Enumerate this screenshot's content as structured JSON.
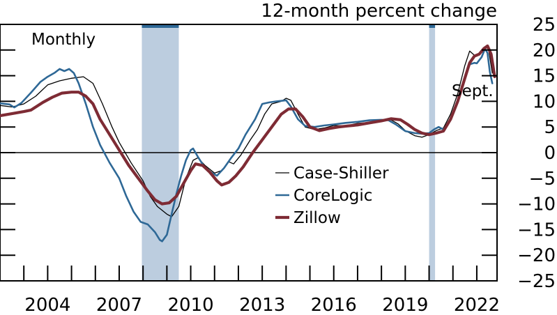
{
  "chart_data": {
    "type": "line",
    "title": "12-month percent change",
    "subtitle": "Monthly",
    "xlabel": "",
    "ylabel": "12-month percent change",
    "xlim": [
      2002.0,
      2022.85
    ],
    "ylim": [
      -25,
      25
    ],
    "x_ticks": [
      2002,
      2003,
      2004,
      2005,
      2006,
      2007,
      2008,
      2009,
      2010,
      2011,
      2012,
      2013,
      2014,
      2015,
      2016,
      2017,
      2018,
      2019,
      2020,
      2021,
      2022
    ],
    "x_tick_labels": [
      "2004",
      "2007",
      "2010",
      "2013",
      "2016",
      "2019",
      "2022"
    ],
    "x_tick_label_years": [
      2004,
      2007,
      2010,
      2013,
      2016,
      2019,
      2022
    ],
    "y_ticks": [
      25,
      20,
      15,
      10,
      5,
      0,
      -5,
      -10,
      -15,
      -20,
      -25
    ],
    "y_tick_labels": [
      "25",
      "20",
      "15",
      "10",
      "5",
      "0",
      "−5",
      "−10",
      "−15",
      "−20",
      "−25"
    ],
    "recessions": [
      {
        "start": 2007.95,
        "end": 2009.5
      },
      {
        "start": 2020.0,
        "end": 2020.25
      }
    ],
    "zero_line": true,
    "legend_position": "center-right",
    "annotation": "Sept.",
    "series": [
      {
        "name": "Case-Shiller",
        "color": "#000000",
        "style": "thin",
        "points": [
          [
            2002.0,
            9.2
          ],
          [
            2002.5,
            8.9
          ],
          [
            2003.0,
            9.5
          ],
          [
            2003.5,
            11.0
          ],
          [
            2004.0,
            13.2
          ],
          [
            2004.5,
            14.0
          ],
          [
            2005.0,
            14.5
          ],
          [
            2005.5,
            14.8
          ],
          [
            2005.9,
            13.5
          ],
          [
            2006.3,
            9.5
          ],
          [
            2006.7,
            5.0
          ],
          [
            2007.0,
            2.0
          ],
          [
            2007.5,
            -2.0
          ],
          [
            2008.0,
            -5.5
          ],
          [
            2008.3,
            -8.5
          ],
          [
            2008.6,
            -10.5
          ],
          [
            2009.0,
            -12.0
          ],
          [
            2009.2,
            -12.5
          ],
          [
            2009.5,
            -10.5
          ],
          [
            2009.8,
            -5.0
          ],
          [
            2010.1,
            -1.5
          ],
          [
            2010.3,
            -1.0
          ],
          [
            2010.6,
            -2.5
          ],
          [
            2011.0,
            -4.0
          ],
          [
            2011.3,
            -3.5
          ],
          [
            2011.6,
            -1.8
          ],
          [
            2011.8,
            -2.2
          ],
          [
            2012.1,
            -0.5
          ],
          [
            2012.5,
            2.5
          ],
          [
            2012.8,
            4.5
          ],
          [
            2013.1,
            7.5
          ],
          [
            2013.4,
            9.5
          ],
          [
            2013.8,
            10.0
          ],
          [
            2014.0,
            10.6
          ],
          [
            2014.2,
            10.2
          ],
          [
            2014.5,
            7.5
          ],
          [
            2014.8,
            5.0
          ],
          [
            2015.2,
            4.5
          ],
          [
            2015.6,
            4.8
          ],
          [
            2016.0,
            5.3
          ],
          [
            2016.5,
            5.2
          ],
          [
            2017.0,
            5.7
          ],
          [
            2017.5,
            5.9
          ],
          [
            2018.0,
            6.3
          ],
          [
            2018.4,
            6.4
          ],
          [
            2018.7,
            5.6
          ],
          [
            2019.0,
            4.3
          ],
          [
            2019.4,
            3.3
          ],
          [
            2019.7,
            3.0
          ],
          [
            2020.0,
            3.5
          ],
          [
            2020.3,
            4.3
          ],
          [
            2020.6,
            4.8
          ],
          [
            2020.9,
            7.5
          ],
          [
            2021.2,
            11.5
          ],
          [
            2021.5,
            17.0
          ],
          [
            2021.7,
            19.8
          ],
          [
            2021.9,
            19.0
          ],
          [
            2022.0,
            18.8
          ],
          [
            2022.2,
            19.5
          ],
          [
            2022.4,
            20.8
          ],
          [
            2022.5,
            20.0
          ],
          [
            2022.65,
            15.5
          ]
        ]
      },
      {
        "name": "CoreLogic",
        "color": "#2e6896",
        "style": "medium",
        "points": [
          [
            2002.0,
            9.6
          ],
          [
            2002.4,
            9.4
          ],
          [
            2002.6,
            8.8
          ],
          [
            2002.9,
            9.7
          ],
          [
            2003.3,
            11.7
          ],
          [
            2003.7,
            13.8
          ],
          [
            2004.0,
            14.8
          ],
          [
            2004.3,
            15.6
          ],
          [
            2004.5,
            16.3
          ],
          [
            2004.7,
            15.9
          ],
          [
            2004.9,
            16.3
          ],
          [
            2005.1,
            15.5
          ],
          [
            2005.3,
            13.5
          ],
          [
            2005.6,
            9.5
          ],
          [
            2005.9,
            5.0
          ],
          [
            2006.2,
            1.5
          ],
          [
            2006.6,
            -2.0
          ],
          [
            2007.0,
            -5.0
          ],
          [
            2007.3,
            -8.5
          ],
          [
            2007.6,
            -11.5
          ],
          [
            2007.9,
            -13.5
          ],
          [
            2008.2,
            -14.0
          ],
          [
            2008.5,
            -15.5
          ],
          [
            2008.7,
            -17.0
          ],
          [
            2008.8,
            -17.3
          ],
          [
            2009.0,
            -16.0
          ],
          [
            2009.2,
            -12.0
          ],
          [
            2009.4,
            -8.0
          ],
          [
            2009.6,
            -4.5
          ],
          [
            2009.8,
            -1.5
          ],
          [
            2010.0,
            0.5
          ],
          [
            2010.1,
            0.8
          ],
          [
            2010.3,
            -0.8
          ],
          [
            2010.6,
            -3.0
          ],
          [
            2010.9,
            -4.0
          ],
          [
            2011.1,
            -4.5
          ],
          [
            2011.4,
            -3.0
          ],
          [
            2011.7,
            -1.0
          ],
          [
            2012.0,
            0.8
          ],
          [
            2012.3,
            3.5
          ],
          [
            2012.7,
            6.5
          ],
          [
            2013.0,
            9.5
          ],
          [
            2013.3,
            9.8
          ],
          [
            2013.6,
            10.0
          ],
          [
            2014.0,
            10.2
          ],
          [
            2014.2,
            9.0
          ],
          [
            2014.5,
            6.5
          ],
          [
            2014.8,
            5.2
          ],
          [
            2015.2,
            5.0
          ],
          [
            2015.6,
            5.3
          ],
          [
            2016.0,
            5.5
          ],
          [
            2016.5,
            5.8
          ],
          [
            2017.0,
            6.0
          ],
          [
            2017.5,
            6.3
          ],
          [
            2018.0,
            6.4
          ],
          [
            2018.3,
            6.3
          ],
          [
            2018.6,
            5.5
          ],
          [
            2019.0,
            4.2
          ],
          [
            2019.4,
            3.8
          ],
          [
            2019.7,
            3.7
          ],
          [
            2020.0,
            3.8
          ],
          [
            2020.2,
            4.5
          ],
          [
            2020.4,
            5.0
          ],
          [
            2020.6,
            4.5
          ],
          [
            2020.9,
            6.5
          ],
          [
            2021.2,
            10.0
          ],
          [
            2021.5,
            14.5
          ],
          [
            2021.7,
            17.2
          ],
          [
            2021.9,
            17.5
          ],
          [
            2022.0,
            17.4
          ],
          [
            2022.2,
            18.6
          ],
          [
            2022.35,
            20.3
          ],
          [
            2022.45,
            19.4
          ],
          [
            2022.55,
            15.7
          ],
          [
            2022.65,
            13.5
          ]
        ]
      },
      {
        "name": "Zillow",
        "color": "#7e2b34",
        "style": "thick",
        "points": [
          [
            2002.0,
            7.2
          ],
          [
            2002.5,
            7.6
          ],
          [
            2003.0,
            8.0
          ],
          [
            2003.3,
            8.3
          ],
          [
            2003.8,
            9.8
          ],
          [
            2004.2,
            10.8
          ],
          [
            2004.6,
            11.6
          ],
          [
            2005.0,
            11.8
          ],
          [
            2005.3,
            11.8
          ],
          [
            2005.6,
            11.0
          ],
          [
            2005.9,
            9.5
          ],
          [
            2006.2,
            6.5
          ],
          [
            2006.6,
            3.5
          ],
          [
            2007.0,
            0.5
          ],
          [
            2007.4,
            -2.5
          ],
          [
            2007.8,
            -5.0
          ],
          [
            2008.2,
            -7.5
          ],
          [
            2008.5,
            -9.2
          ],
          [
            2008.8,
            -10.0
          ],
          [
            2009.1,
            -9.8
          ],
          [
            2009.4,
            -8.5
          ],
          [
            2009.7,
            -6.0
          ],
          [
            2010.0,
            -3.5
          ],
          [
            2010.2,
            -2.2
          ],
          [
            2010.5,
            -2.5
          ],
          [
            2010.8,
            -3.8
          ],
          [
            2011.1,
            -5.5
          ],
          [
            2011.3,
            -6.3
          ],
          [
            2011.6,
            -5.8
          ],
          [
            2011.9,
            -4.5
          ],
          [
            2012.2,
            -2.8
          ],
          [
            2012.6,
            0.0
          ],
          [
            2013.0,
            2.5
          ],
          [
            2013.4,
            5.0
          ],
          [
            2013.8,
            7.5
          ],
          [
            2014.1,
            8.5
          ],
          [
            2014.4,
            8.5
          ],
          [
            2014.7,
            7.0
          ],
          [
            2015.0,
            5.0
          ],
          [
            2015.4,
            4.3
          ],
          [
            2015.8,
            4.7
          ],
          [
            2016.2,
            5.0
          ],
          [
            2016.6,
            5.2
          ],
          [
            2017.0,
            5.4
          ],
          [
            2017.5,
            5.8
          ],
          [
            2018.0,
            6.2
          ],
          [
            2018.4,
            6.6
          ],
          [
            2018.8,
            6.4
          ],
          [
            2019.1,
            5.5
          ],
          [
            2019.4,
            4.5
          ],
          [
            2019.7,
            3.8
          ],
          [
            2020.0,
            3.5
          ],
          [
            2020.3,
            3.8
          ],
          [
            2020.6,
            4.2
          ],
          [
            2020.9,
            6.5
          ],
          [
            2021.2,
            10.0
          ],
          [
            2021.5,
            14.5
          ],
          [
            2021.7,
            17.5
          ],
          [
            2021.9,
            18.8
          ],
          [
            2022.1,
            19.2
          ],
          [
            2022.3,
            20.3
          ],
          [
            2022.45,
            20.8
          ],
          [
            2022.6,
            19.2
          ],
          [
            2022.75,
            14.8
          ]
        ]
      }
    ]
  }
}
